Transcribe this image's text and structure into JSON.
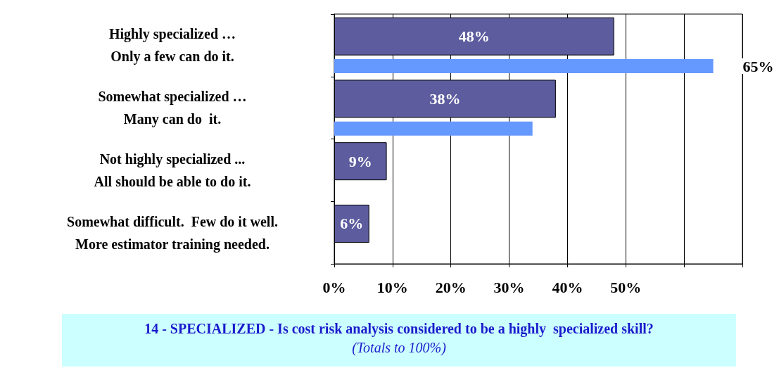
{
  "chart_data": {
    "type": "bar",
    "orientation": "horizontal",
    "title": "14 - SPECIALIZED - Is cost risk analysis considered to be a highly  specialized skill?",
    "subtitle": "(Totals to 100%)",
    "categories": [
      "Highly specialized …\nOnly a few can do it.",
      "Somewhat specialized …\nMany can do  it.",
      "Not highly specialized ...\nAll should be able to do it.",
      "Somewhat difficult.  Few do it well.\nMore estimator training needed."
    ],
    "series": [
      {
        "color": "#5c5c9e",
        "values": [
          48,
          38,
          9,
          6
        ],
        "value_labels": [
          "48%",
          "38%",
          "9%",
          "6%"
        ]
      },
      {
        "color": "#6699ff",
        "values": [
          65,
          34,
          null,
          null
        ],
        "value_labels": [
          "65%",
          null,
          null,
          null
        ]
      }
    ],
    "xlim": [
      0,
      70
    ],
    "xticks": [
      {
        "value": 0,
        "label": "0%"
      },
      {
        "value": 10,
        "label": "10%"
      },
      {
        "value": 20,
        "label": "20%"
      },
      {
        "value": 30,
        "label": "30%"
      },
      {
        "value": 40,
        "label": "40%"
      },
      {
        "value": 50,
        "label": "50%"
      },
      {
        "value": 60,
        "label": null
      },
      {
        "value": 70,
        "label": null
      }
    ],
    "grid": "x"
  }
}
